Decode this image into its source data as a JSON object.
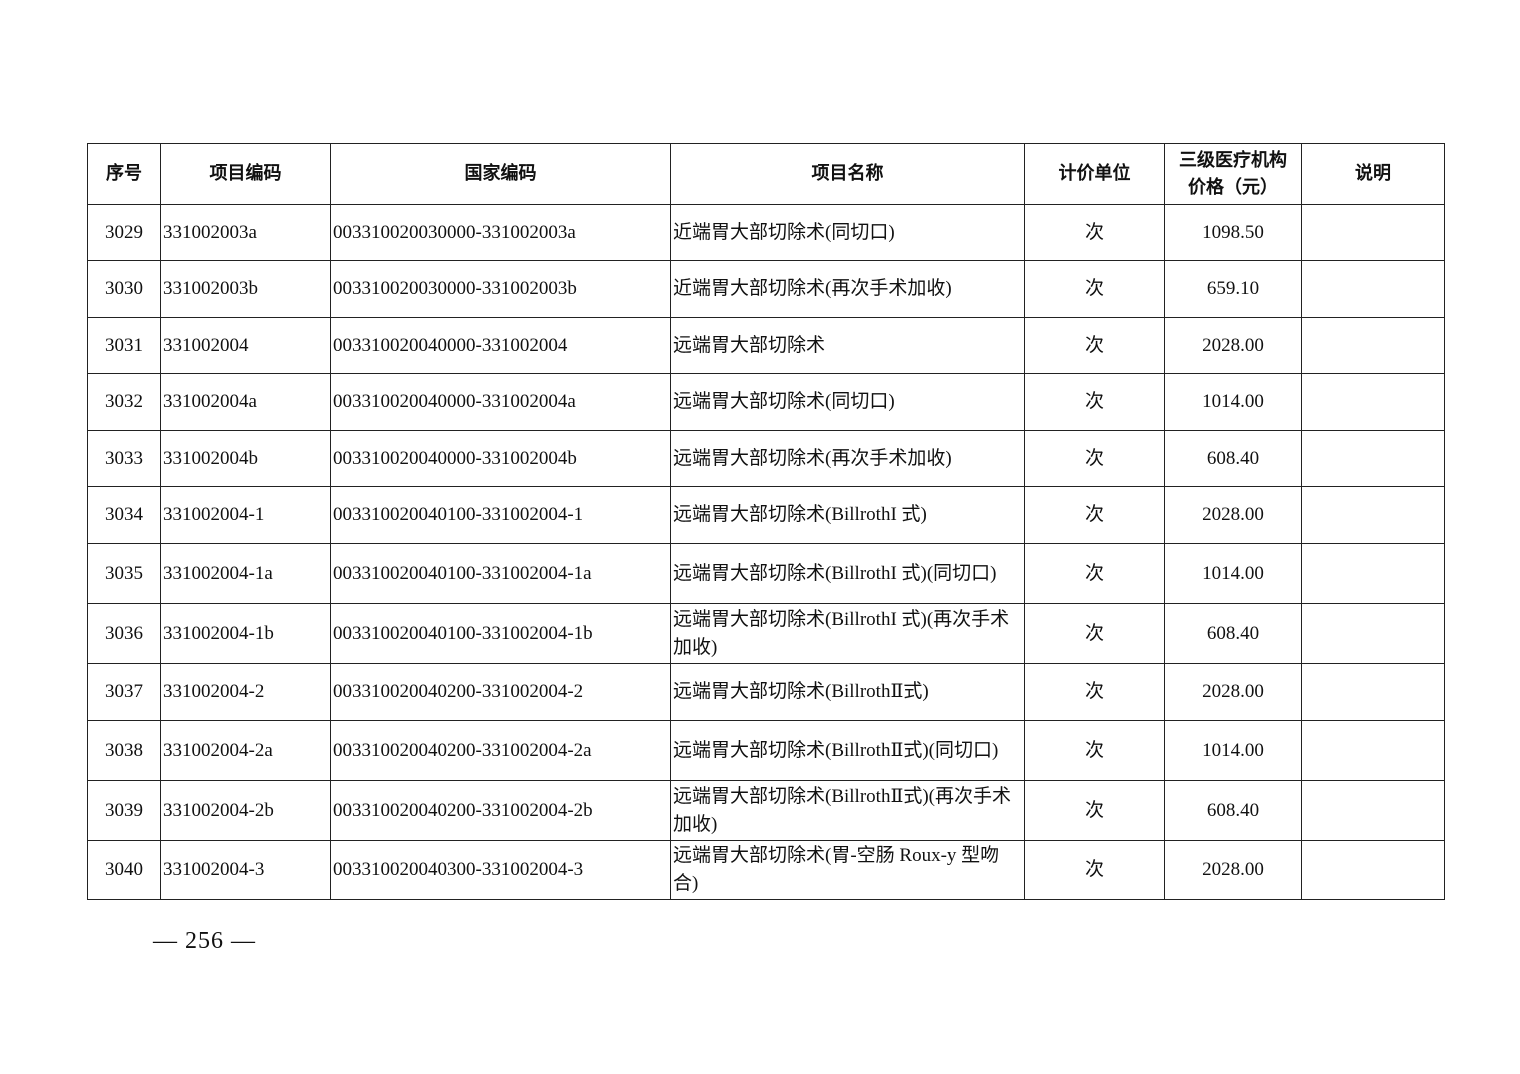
{
  "table": {
    "headers": [
      "序号",
      "项目编码",
      "国家编码",
      "项目名称",
      "计价单位",
      "三级医疗机构\n价格（元）",
      "说明"
    ],
    "rows": [
      {
        "no": "3029",
        "code": "331002003a",
        "national_code": "003310020030000-331002003a",
        "name": "近端胃大部切除术(同切口)",
        "unit": "次",
        "price": "1098.50",
        "note": ""
      },
      {
        "no": "3030",
        "code": "331002003b",
        "national_code": "003310020030000-331002003b",
        "name": "近端胃大部切除术(再次手术加收)",
        "unit": "次",
        "price": "659.10",
        "note": ""
      },
      {
        "no": "3031",
        "code": "331002004",
        "national_code": "003310020040000-331002004",
        "name": "远端胃大部切除术",
        "unit": "次",
        "price": "2028.00",
        "note": ""
      },
      {
        "no": "3032",
        "code": "331002004a",
        "national_code": "003310020040000-331002004a",
        "name": "远端胃大部切除术(同切口)",
        "unit": "次",
        "price": "1014.00",
        "note": ""
      },
      {
        "no": "3033",
        "code": "331002004b",
        "national_code": "003310020040000-331002004b",
        "name": "远端胃大部切除术(再次手术加收)",
        "unit": "次",
        "price": "608.40",
        "note": ""
      },
      {
        "no": "3034",
        "code": "331002004-1",
        "national_code": "003310020040100-331002004-1",
        "name": "远端胃大部切除术(BillrothI 式)",
        "unit": "次",
        "price": "2028.00",
        "note": ""
      },
      {
        "no": "3035",
        "code": "331002004-1a",
        "national_code": "003310020040100-331002004-1a",
        "name": "远端胃大部切除术(BillrothI 式)(同切口)",
        "unit": "次",
        "price": "1014.00",
        "note": ""
      },
      {
        "no": "3036",
        "code": "331002004-1b",
        "national_code": "003310020040100-331002004-1b",
        "name": "远端胃大部切除术(BillrothI 式)(再次手术加收)",
        "unit": "次",
        "price": "608.40",
        "note": ""
      },
      {
        "no": "3037",
        "code": "331002004-2",
        "national_code": "003310020040200-331002004-2",
        "name": "远端胃大部切除术(BillrothⅡ式)",
        "unit": "次",
        "price": "2028.00",
        "note": ""
      },
      {
        "no": "3038",
        "code": "331002004-2a",
        "national_code": "003310020040200-331002004-2a",
        "name": "远端胃大部切除术(BillrothⅡ式)(同切口)",
        "unit": "次",
        "price": "1014.00",
        "note": ""
      },
      {
        "no": "3039",
        "code": "331002004-2b",
        "national_code": "003310020040200-331002004-2b",
        "name": "远端胃大部切除术(BillrothⅡ式)(再次手术加收)",
        "unit": "次",
        "price": "608.40",
        "note": ""
      },
      {
        "no": "3040",
        "code": "331002004-3",
        "national_code": "003310020040300-331002004-3",
        "name": "远端胃大部切除术(胃-空肠 Roux-y 型吻合)",
        "unit": "次",
        "price": "2028.00",
        "note": ""
      }
    ]
  },
  "footer": {
    "page_number": "— 256 —"
  }
}
